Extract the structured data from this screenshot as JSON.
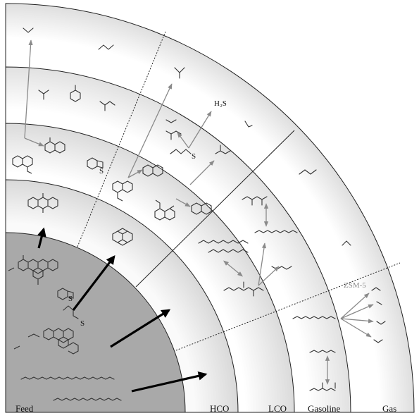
{
  "zones": {
    "feed": "Feed",
    "hco": "HCO",
    "lco": "LCO",
    "gasoline": "Gasoline",
    "gas": "Gas"
  },
  "species": {
    "h2s": "H₂S",
    "s1": "S",
    "s2": "S",
    "s3": "S",
    "s4": "S"
  },
  "catalyst": "ZSM-5"
}
